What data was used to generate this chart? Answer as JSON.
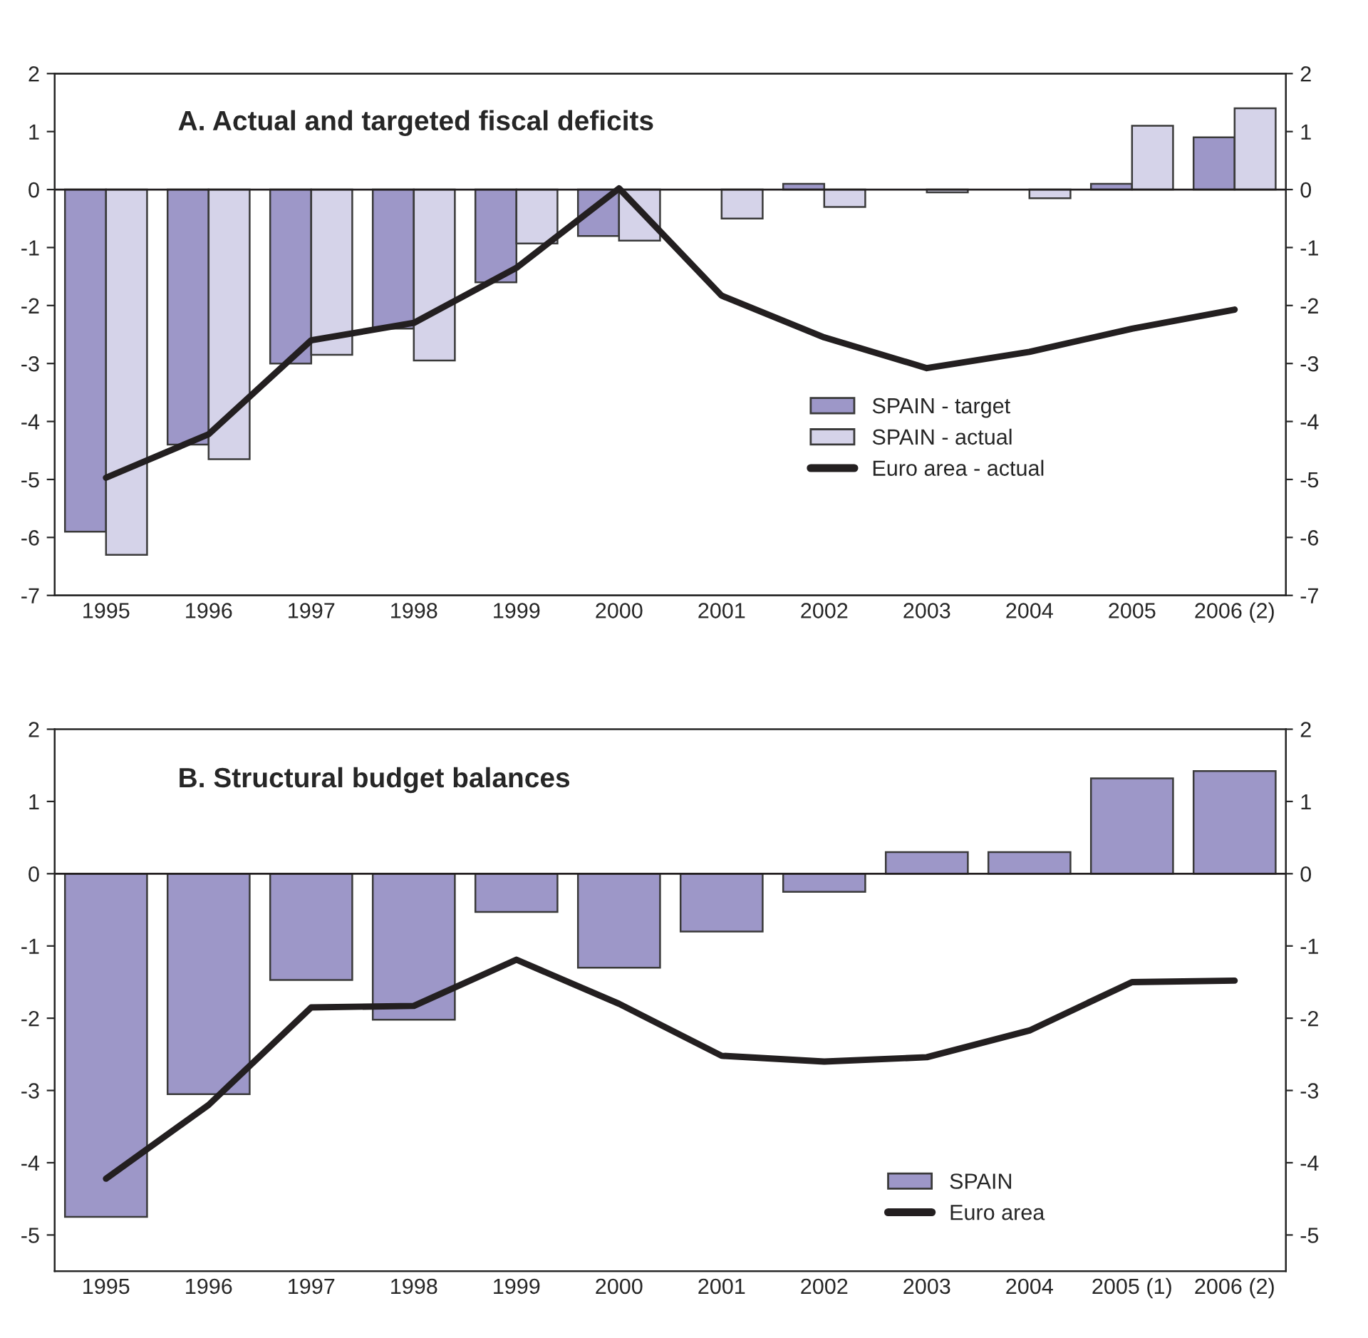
{
  "chart_data": [
    {
      "type": "bar",
      "title": "A. Actual and targeted fiscal deficits",
      "categories": [
        "1995",
        "1996",
        "1997",
        "1998",
        "1999",
        "2000",
        "2001",
        "2002",
        "2003",
        "2004",
        "2005",
        "2006 (2)"
      ],
      "series": [
        {
          "name": "SPAIN - target",
          "color": "#9d97c8",
          "values": [
            -5.9,
            -4.4,
            -3.0,
            -2.4,
            -1.6,
            -0.8,
            null,
            0.1,
            null,
            null,
            0.1,
            0.9
          ]
        },
        {
          "name": "SPAIN - actual",
          "color": "#d5d3e9",
          "values": [
            -6.3,
            -4.65,
            -2.85,
            -2.95,
            -0.93,
            -0.88,
            -0.5,
            -0.3,
            -0.05,
            -0.15,
            1.1,
            1.4
          ]
        },
        {
          "name": "Euro area - actual",
          "type": "line",
          "color": "#231f20",
          "values": [
            -4.97,
            -4.22,
            -2.6,
            -2.3,
            -1.35,
            0.02,
            -1.83,
            -2.55,
            -3.08,
            -2.8,
            -2.4,
            -2.07
          ]
        }
      ],
      "ylim": [
        -7,
        2
      ],
      "yticks": [
        -7,
        -6,
        -5,
        -4,
        -3,
        -2,
        -1,
        0,
        1,
        2
      ],
      "y2lim": [
        -7,
        2
      ],
      "y2ticks": [
        -7,
        -6,
        -5,
        -4,
        -3,
        -2,
        -1,
        0,
        1,
        2
      ],
      "legend": "center right",
      "marker": "none",
      "line_style": "solid"
    },
    {
      "type": "bar",
      "title": "B. Structural budget balances",
      "categories": [
        "1995",
        "1996",
        "1997",
        "1998",
        "1999",
        "2000",
        "2001",
        "2002",
        "2003",
        "2004",
        "2005 (1)",
        "2006 (2)"
      ],
      "series": [
        {
          "name": "SPAIN",
          "color": "#9d97c8",
          "values": [
            -4.75,
            -3.05,
            -1.47,
            -2.02,
            -0.53,
            -1.3,
            -0.8,
            -0.25,
            0.3,
            0.3,
            1.32,
            1.42
          ]
        },
        {
          "name": "Euro area",
          "type": "line",
          "color": "#231f20",
          "values": [
            -4.22,
            -3.2,
            -1.85,
            -1.83,
            -1.19,
            -1.8,
            -2.52,
            -2.6,
            -2.54,
            -2.17,
            -1.5,
            -1.48
          ]
        }
      ],
      "ylim": [
        -5.5,
        2
      ],
      "yticks": [
        -5,
        -4,
        -3,
        -2,
        -1,
        0,
        1,
        2
      ],
      "y2lim": [
        -5.5,
        2
      ],
      "y2ticks": [
        -5,
        -4,
        -3,
        -2,
        -1,
        0,
        1,
        2
      ],
      "legend": "lower right",
      "marker": "none",
      "line_style": "solid"
    }
  ]
}
